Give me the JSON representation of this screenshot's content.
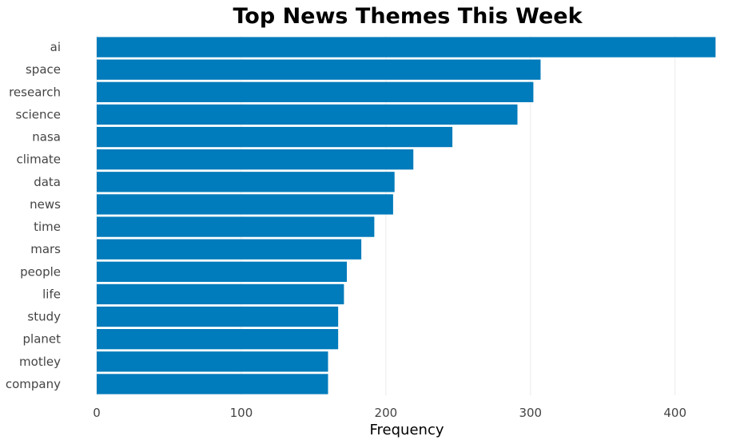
{
  "chart_data": {
    "type": "bar",
    "orientation": "horizontal",
    "title": "Top News Themes This Week",
    "xlabel": "Frequency",
    "ylabel": "",
    "categories": [
      "ai",
      "space",
      "research",
      "science",
      "nasa",
      "climate",
      "data",
      "news",
      "time",
      "mars",
      "people",
      "life",
      "study",
      "planet",
      "motley",
      "company"
    ],
    "values": [
      428,
      307,
      302,
      291,
      246,
      219,
      206,
      205,
      192,
      183,
      173,
      171,
      167,
      167,
      160,
      160
    ],
    "xlim": [
      0,
      430
    ],
    "xticks": [
      0,
      100,
      200,
      300,
      400
    ],
    "grid": true,
    "bar_color": "#007bbb",
    "legend": "none"
  }
}
